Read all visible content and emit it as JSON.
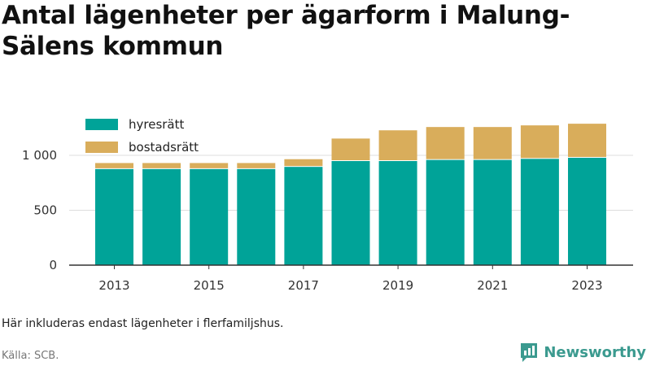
{
  "title": "Antal lägenheter per ägarform i Malung-Sälens kommun",
  "note": "Här inkluderas endast lägenheter i flerfamiljshus.",
  "source": "Källa: SCB.",
  "brand": "Newsworthy",
  "colors": {
    "hyresratt": "#00a398",
    "bostadsratt": "#d9ad5b",
    "grid": "#dddddd",
    "axis": "#333333",
    "brand": "#3b9a8f"
  },
  "chart_data": {
    "type": "bar",
    "stacked": true,
    "x": [
      2013,
      2014,
      2015,
      2016,
      2017,
      2018,
      2019,
      2020,
      2021,
      2022,
      2023
    ],
    "x_tick_labels": [
      "2013",
      "2015",
      "2017",
      "2019",
      "2021",
      "2023"
    ],
    "y_tick_values": [
      0,
      500,
      1000
    ],
    "y_tick_labels": [
      "0",
      "500",
      "1 000"
    ],
    "ylim": [
      0,
      1400
    ],
    "grid": true,
    "legend_position": "top-left",
    "series": [
      {
        "name": "hyresrätt",
        "color": "#00a398",
        "values": [
          875,
          875,
          875,
          875,
          895,
          948,
          948,
          958,
          958,
          968,
          978
        ]
      },
      {
        "name": "bostadsrätt",
        "color": "#d9ad5b",
        "values": [
          55,
          55,
          55,
          55,
          70,
          205,
          280,
          300,
          300,
          305,
          310
        ]
      }
    ]
  }
}
